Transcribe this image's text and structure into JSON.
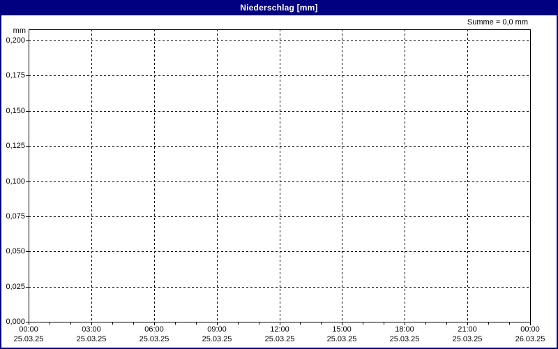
{
  "window": {
    "title": "Niederschlag [mm]",
    "summe_label": "Summe = 0,0 mm",
    "unit_label": "mm"
  },
  "colors": {
    "titlebar": "#000080",
    "window_border": "#000080",
    "background": "#ffffff",
    "plot_border": "#000000",
    "grid": "#000000",
    "text": "#000000",
    "title_text": "#ffffff"
  },
  "chart_data": {
    "type": "bar",
    "title": "Niederschlag [mm]",
    "ylabel": "mm",
    "xlabel": "",
    "annotation": "Summe = 0,0 mm",
    "sum_value_mm": 0.0,
    "grid": "dashed",
    "legend": "none",
    "ylim": [
      0,
      0.208
    ],
    "y_ticks": [
      {
        "value": 0.0,
        "label": "0,000"
      },
      {
        "value": 0.025,
        "label": "0,025"
      },
      {
        "value": 0.05,
        "label": "0,050"
      },
      {
        "value": 0.075,
        "label": "0,075"
      },
      {
        "value": 0.1,
        "label": "0,100"
      },
      {
        "value": 0.125,
        "label": "0,125"
      },
      {
        "value": 0.15,
        "label": "0,150"
      },
      {
        "value": 0.175,
        "label": "0,175"
      },
      {
        "value": 0.2,
        "label": "0,200"
      }
    ],
    "x_ticks": [
      {
        "time": "00:00",
        "date": "25.03.25"
      },
      {
        "time": "03:00",
        "date": "25.03.25"
      },
      {
        "time": "06:00",
        "date": "25.03.25"
      },
      {
        "time": "09:00",
        "date": "25.03.25"
      },
      {
        "time": "12:00",
        "date": "25.03.25"
      },
      {
        "time": "15:00",
        "date": "25.03.25"
      },
      {
        "time": "18:00",
        "date": "25.03.25"
      },
      {
        "time": "21:00",
        "date": "25.03.25"
      },
      {
        "time": "00:00",
        "date": "26.03.25"
      }
    ],
    "x_minor_ticks_per_interval": 2,
    "series": [
      {
        "name": "Niederschlag",
        "values": []
      }
    ]
  }
}
